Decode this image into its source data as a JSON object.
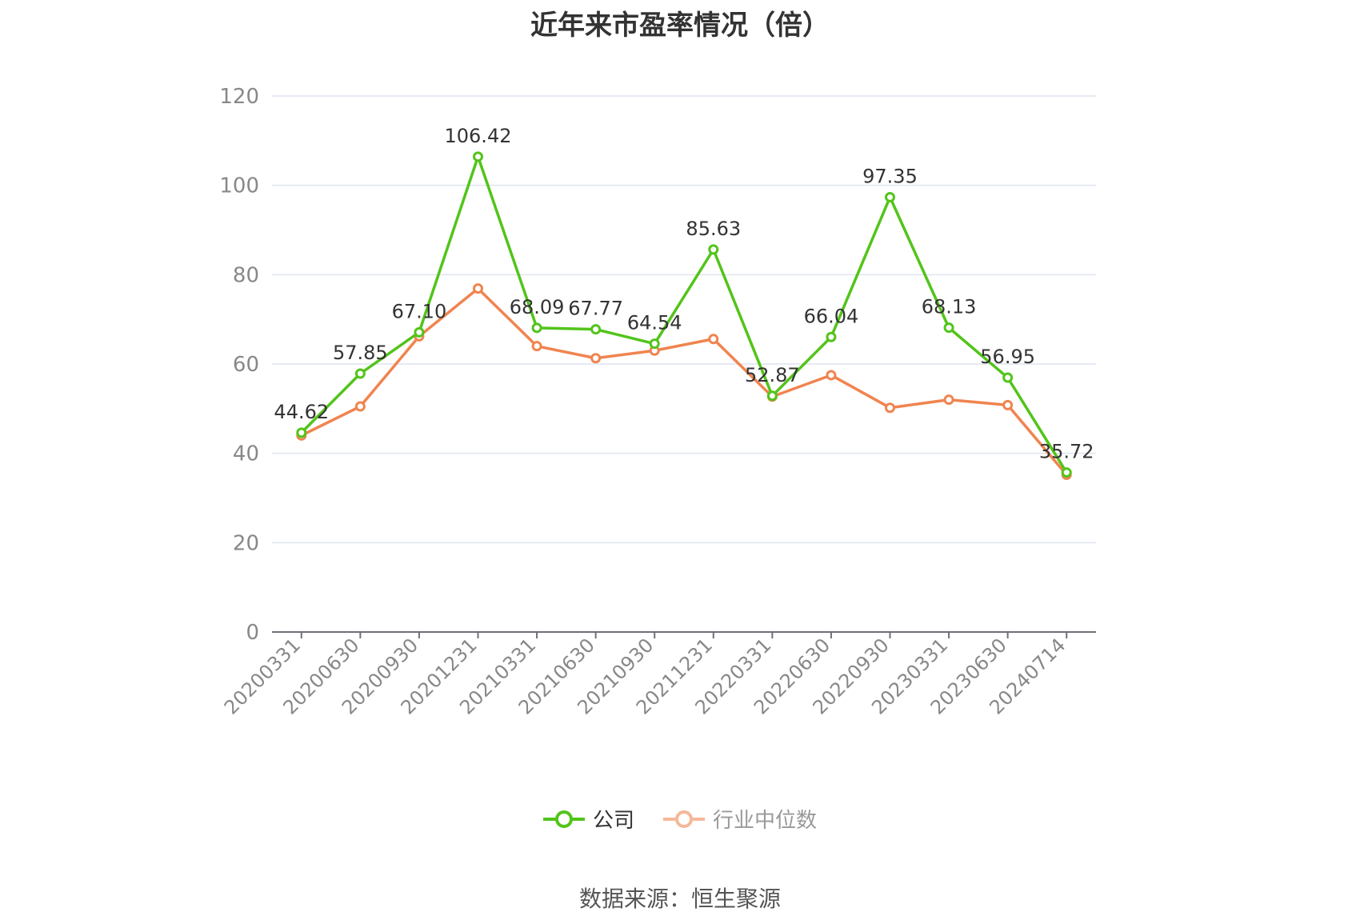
{
  "chart_data": {
    "type": "line",
    "title": "近年来市盈率情况（倍）",
    "categories": [
      "20200331",
      "20200630",
      "20200930",
      "20201231",
      "20210331",
      "20210630",
      "20210930",
      "20211231",
      "20220331",
      "20220630",
      "20220930",
      "20230331",
      "20230630",
      "20240714"
    ],
    "series": [
      {
        "name": "公司",
        "color": "#52c41a",
        "values": [
          44.62,
          57.85,
          67.1,
          106.42,
          68.09,
          67.77,
          64.54,
          85.63,
          52.87,
          66.04,
          97.35,
          68.13,
          56.95,
          35.72
        ],
        "labels": [
          "44.62",
          "57.85",
          "67.10",
          "106.42",
          "68.09",
          "67.77",
          "64.54",
          "85.63",
          "52.87",
          "66.04",
          "97.35",
          "68.13",
          "56.95",
          "35.72"
        ]
      },
      {
        "name": "行业中位数",
        "color": "#f0844f",
        "values": [
          44.0,
          50.5,
          66.2,
          76.9,
          64.0,
          61.3,
          63.0,
          65.6,
          52.7,
          57.5,
          50.2,
          52.0,
          50.8,
          35.2
        ]
      }
    ],
    "ylim": [
      0,
      120
    ],
    "yticks": [
      "0",
      "20",
      "40",
      "60",
      "80",
      "100",
      "120"
    ],
    "grid": true,
    "legend_position": "bottom"
  },
  "source": "数据来源：恒生聚源"
}
